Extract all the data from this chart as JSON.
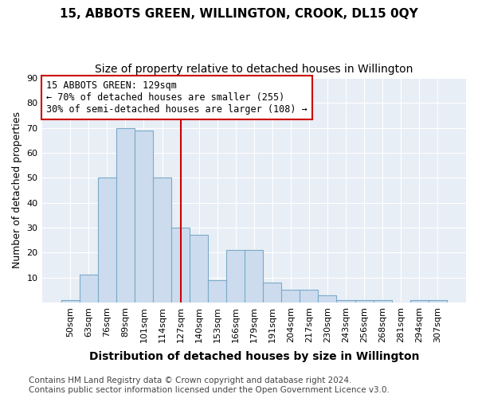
{
  "title": "15, ABBOTS GREEN, WILLINGTON, CROOK, DL15 0QY",
  "subtitle": "Size of property relative to detached houses in Willington",
  "xlabel": "Distribution of detached houses by size in Willington",
  "ylabel": "Number of detached properties",
  "categories": [
    "50sqm",
    "63sqm",
    "76sqm",
    "89sqm",
    "101sqm",
    "114sqm",
    "127sqm",
    "140sqm",
    "153sqm",
    "166sqm",
    "179sqm",
    "191sqm",
    "204sqm",
    "217sqm",
    "230sqm",
    "243sqm",
    "256sqm",
    "268sqm",
    "281sqm",
    "294sqm",
    "307sqm"
  ],
  "values": [
    1,
    11,
    50,
    70,
    69,
    50,
    30,
    27,
    9,
    21,
    21,
    8,
    5,
    5,
    3,
    1,
    1,
    1,
    0,
    1,
    1
  ],
  "bar_color": "#ccdcee",
  "bar_edge_color": "#7aaac8",
  "vline_x_index": 6,
  "vline_color": "#cc0000",
  "annotation_text": "15 ABBOTS GREEN: 129sqm\n← 70% of detached houses are smaller (255)\n30% of semi-detached houses are larger (108) →",
  "annotation_box_color": "#ffffff",
  "annotation_box_edge": "#cc0000",
  "footer_line1": "Contains HM Land Registry data © Crown copyright and database right 2024.",
  "footer_line2": "Contains public sector information licensed under the Open Government Licence v3.0.",
  "ylim": [
    0,
    90
  ],
  "yticks": [
    0,
    10,
    20,
    30,
    40,
    50,
    60,
    70,
    80,
    90
  ],
  "fig_background": "#ffffff",
  "plot_background": "#e8eef5",
  "grid_color": "#ffffff",
  "title_fontsize": 11,
  "subtitle_fontsize": 10,
  "xlabel_fontsize": 10,
  "ylabel_fontsize": 9,
  "tick_fontsize": 8,
  "footer_fontsize": 7.5
}
